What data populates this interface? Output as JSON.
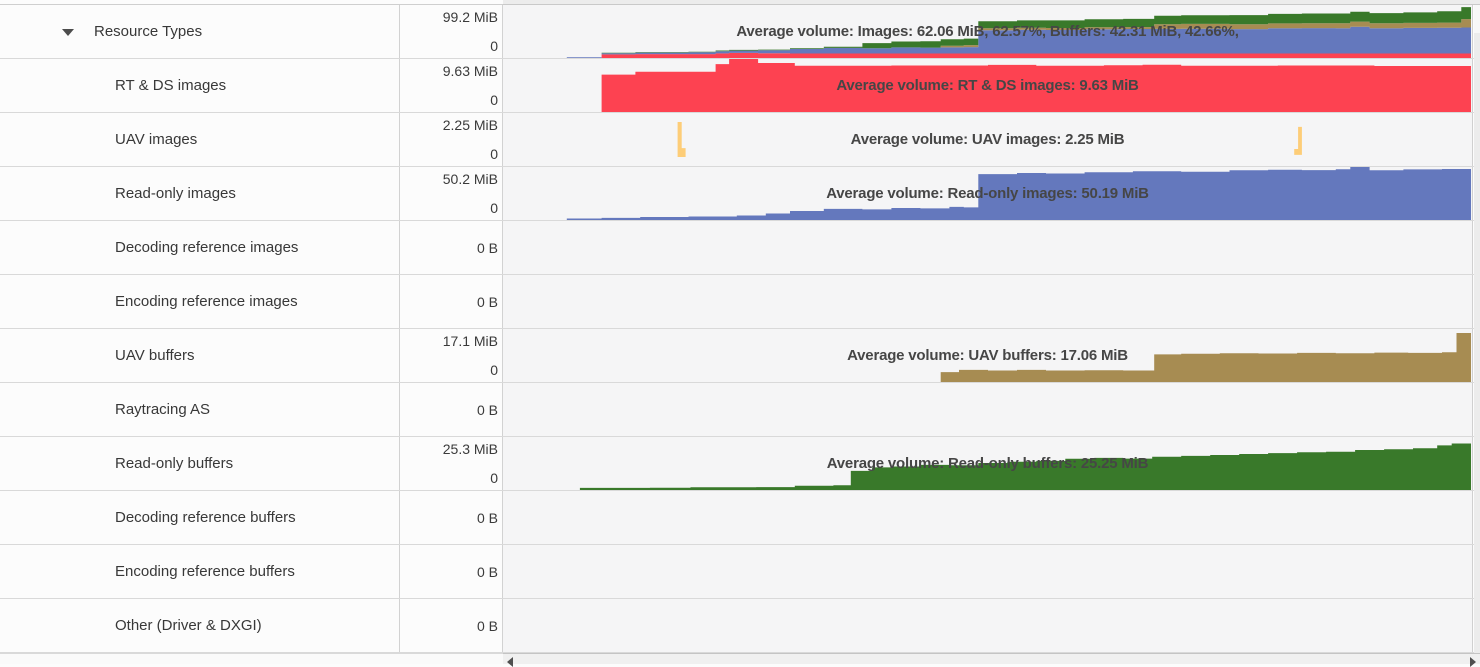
{
  "panel": {
    "name": "Resource Types memory usage panel"
  },
  "colors": {
    "red": "#fd4251",
    "blue": "#6478bd",
    "green": "#39792a",
    "tan": "#a78c52",
    "yellow": "#fdcd78",
    "chart_bg": "#f5f5f6",
    "panel_bg": "#fcfcfc",
    "overlay_text": "#464646"
  },
  "icons": {
    "collapse_arrow": "triangle-down",
    "scroll_left": "triangle-left",
    "scroll_right": "triangle-right"
  },
  "rows": [
    {
      "id": "resource-types",
      "label": "Resource Types",
      "indent": 0,
      "has_arrow": true,
      "scale_max": "99.2 MiB",
      "scale_min": "0",
      "overlay": "Average volume: Images: 62.06 MiB, 62.57%, Buffers: 42.31 MiB, 42.66%,",
      "chart": {
        "type": "stacked_area",
        "max_mib": 99.2,
        "x": [
          0.064,
          0.1,
          0.135,
          0.19,
          0.218,
          0.232,
          0.262,
          0.295,
          0.33,
          0.37,
          0.4,
          0.43,
          0.451,
          0.475,
          0.49,
          0.53,
          0.56,
          0.6,
          0.64,
          0.672,
          0.7,
          0.75,
          0.79,
          0.825,
          0.86,
          0.875,
          0.895,
          0.93,
          0.965,
          0.99,
          1.0
        ],
        "series": [
          {
            "name": "RT & DS images",
            "color": "red",
            "values": [
              0,
              6.8,
              7.3,
              7.3,
              8.7,
              9.63,
              8.9,
              8.4,
              8.4,
              8.4,
              8.4,
              8.4,
              8.4,
              8.45,
              8.5,
              8.4,
              8.45,
              8.5,
              8.4,
              8.4,
              8.45,
              8.4,
              8.45,
              8.4,
              8.4,
              8.45,
              8.4,
              8.4,
              8.4,
              8.4,
              8.4
            ]
          },
          {
            "name": "Read-only images",
            "color": "blue",
            "values": [
              1.4,
              2.0,
              2.8,
              3.3,
              4.0,
              4.3,
              5.5,
              8.5,
              10.5,
              10.0,
              11.4,
              11.0,
              11.5,
              11.9,
              43.5,
              44.5,
              44.0,
              45.2,
              45.8,
              46.0,
              46.2,
              45.7,
              47.1,
              47.6,
              47.3,
              50.2,
              47.2,
              47.9,
              48.3,
              48.7,
              49.0
            ]
          },
          {
            "name": "UAV buffers",
            "color": "tan",
            "values": [
              0,
              0,
              0,
              0,
              0,
              0,
              0,
              0,
              0,
              0,
              0,
              0,
              3.2,
              3.8,
              3.7,
              3.9,
              3.7,
              3.8,
              3.7,
              8.9,
              9.1,
              9.2,
              9.3,
              9.2,
              9.3,
              9.4,
              9.4,
              9.4,
              9.5,
              15.8,
              15.8
            ]
          },
          {
            "name": "Read-only buffers",
            "color": "green",
            "values": [
              0,
              1.0,
              1.0,
              1.1,
              1.3,
              1.3,
              1.4,
              1.5,
              2.0,
              9.5,
              11.0,
              11.8,
              12.0,
              12.2,
              12.9,
              13.5,
              14.2,
              15.0,
              15.2,
              15.9,
              16.3,
              17.0,
              17.6,
              18.0,
              18.3,
              18.5,
              19.1,
              19.6,
              21.3,
              22.3,
              22.5
            ]
          }
        ]
      }
    },
    {
      "id": "rt-ds-images",
      "label": "RT & DS images",
      "indent": 1,
      "scale_max": "9.63 MiB",
      "scale_min": "0",
      "overlay": "Average volume: RT & DS images: 9.63 MiB",
      "chart": {
        "type": "area",
        "max_mib": 9.63,
        "series": [
          {
            "name": "RT & DS images",
            "color": "red",
            "x": [
              0.1,
              0.135,
              0.218,
              0.232,
              0.262,
              0.3,
              0.4,
              0.5,
              0.55,
              0.62,
              0.66,
              0.7,
              0.8,
              0.9,
              1.0
            ],
            "values": [
              6.8,
              7.3,
              8.7,
              9.63,
              8.9,
              8.4,
              8.45,
              8.55,
              8.4,
              8.5,
              8.6,
              8.4,
              8.45,
              8.35,
              8.4
            ]
          }
        ]
      }
    },
    {
      "id": "uav-images",
      "label": "UAV images",
      "indent": 1,
      "scale_max": "2.25 MiB",
      "scale_min": "0",
      "overlay": "Average volume: UAV images: 2.25 MiB",
      "chart": {
        "type": "area",
        "max_mib": 2.25,
        "series": [
          {
            "name": "UAV images spike 1",
            "color": "yellow",
            "base": 0.38,
            "x": [
              0.1787,
              0.1829,
              0.187
            ],
            "values": [
              1.87,
              0.76,
              0.38
            ]
          },
          {
            "name": "UAV images spike 2",
            "color": "yellow",
            "base": 0.47,
            "x": [
              0.817,
              0.821,
              0.825
            ],
            "values": [
              0.72,
              1.66,
              0.47
            ]
          }
        ]
      }
    },
    {
      "id": "read-only-images",
      "label": "Read-only images",
      "indent": 1,
      "scale_max": "50.2 MiB",
      "scale_min": "0",
      "overlay": "Average volume: Read-only images: 50.19 MiB",
      "chart": {
        "type": "area",
        "max_mib": 50.2,
        "series": [
          {
            "name": "Read-only images",
            "color": "blue",
            "x": [
              0.064,
              0.1,
              0.14,
              0.19,
              0.24,
              0.27,
              0.295,
              0.33,
              0.37,
              0.4,
              0.43,
              0.46,
              0.475,
              0.49,
              0.53,
              0.56,
              0.6,
              0.65,
              0.7,
              0.75,
              0.79,
              0.825,
              0.86,
              0.875,
              0.895,
              0.93,
              0.97,
              1.0
            ],
            "values": [
              1.4,
              2.0,
              2.8,
              3.3,
              4.3,
              6.2,
              8.5,
              10.5,
              10.0,
              11.4,
              11.0,
              12.4,
              11.9,
              43.5,
              44.5,
              44.0,
              45.2,
              46.2,
              45.7,
              47.1,
              47.6,
              47.3,
              48.0,
              50.2,
              47.2,
              47.9,
              48.3,
              49.0
            ]
          }
        ]
      }
    },
    {
      "id": "decoding-reference-images",
      "label": "Decoding reference images",
      "indent": 1,
      "value": "0 B"
    },
    {
      "id": "encoding-reference-images",
      "label": "Encoding reference images",
      "indent": 1,
      "value": "0 B"
    },
    {
      "id": "uav-buffers",
      "label": "UAV buffers",
      "indent": 1,
      "scale_max": "17.1 MiB",
      "scale_min": "0",
      "overlay": "Average volume: UAV buffers: 17.06 MiB",
      "chart": {
        "type": "area",
        "max_mib": 17.1,
        "series": [
          {
            "name": "UAV buffers",
            "color": "tan",
            "x": [
              0.451,
              0.47,
              0.5,
              0.53,
              0.56,
              0.6,
              0.64,
              0.672,
              0.7,
              0.74,
              0.78,
              0.82,
              0.86,
              0.9,
              0.935,
              0.97,
              0.985,
              1.0
            ],
            "values": [
              3.2,
              3.9,
              3.7,
              3.9,
              3.7,
              3.8,
              3.7,
              8.9,
              9.1,
              9.3,
              9.2,
              9.4,
              9.3,
              9.5,
              9.4,
              9.6,
              15.8,
              15.8
            ]
          }
        ]
      }
    },
    {
      "id": "raytracing-as",
      "label": "Raytracing AS",
      "indent": 1,
      "value": "0 B"
    },
    {
      "id": "read-only-buffers",
      "label": "Read-only buffers",
      "indent": 1,
      "scale_max": "25.3 MiB",
      "scale_min": "0",
      "overlay": "Average volume: Read-only buffers: 25.25 MiB",
      "chart": {
        "type": "area",
        "max_mib": 25.3,
        "series": [
          {
            "name": "Read-only buffers",
            "color": "green",
            "x": [
              0.0775,
              0.15,
              0.192,
              0.26,
              0.3,
              0.34,
              0.358,
              0.38,
              0.4,
              0.43,
              0.46,
              0.49,
              0.52,
              0.55,
              0.58,
              0.61,
              0.64,
              0.67,
              0.7,
              0.73,
              0.76,
              0.79,
              0.82,
              0.85,
              0.88,
              0.91,
              0.94,
              0.965,
              0.98,
              1.0
            ],
            "values": [
              1.0,
              1.1,
              1.3,
              1.4,
              2.0,
              2.3,
              9.1,
              10.8,
              11.2,
              12.0,
              11.8,
              12.9,
              13.5,
              13.9,
              14.9,
              15.3,
              15.0,
              15.9,
              16.3,
              16.7,
              17.2,
              17.6,
              18.0,
              18.3,
              19.1,
              19.5,
              19.9,
              21.3,
              22.2,
              22.5
            ]
          }
        ]
      }
    },
    {
      "id": "decoding-reference-buffers",
      "label": "Decoding reference buffers",
      "indent": 1,
      "value": "0 B"
    },
    {
      "id": "encoding-reference-buffers",
      "label": "Encoding reference buffers",
      "indent": 1,
      "value": "0 B"
    },
    {
      "id": "other-driver-dxgi",
      "label": "Other (Driver & DXGI)",
      "indent": 1,
      "value": "0 B"
    }
  ]
}
